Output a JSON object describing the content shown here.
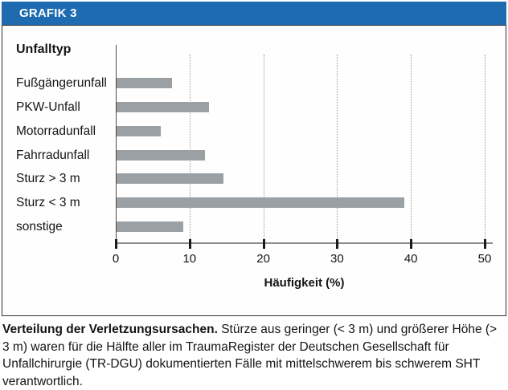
{
  "header": {
    "title": "GRAFIK 3"
  },
  "colors": {
    "header_bg": "#1e6bb1",
    "header_text": "#ffffff",
    "bar": "#9aa0a4",
    "axis_line": "#8c8c8c",
    "y_axis_line": "#4a4a4a",
    "tick": "#1a1a1a",
    "grid": "#9b9b9b",
    "box_border": "#303030",
    "text": "#141414"
  },
  "chart_data": {
    "type": "bar",
    "orientation": "horizontal",
    "ylabel": "Unfalltyp",
    "xlabel": "Häufigkeit (%)",
    "categories": [
      "Fußgängerunfall",
      "PKW-Unfall",
      "Motorradunfall",
      "Fahrradunfall",
      "Sturz > 3 m",
      "Sturz < 3 m",
      "sonstige"
    ],
    "values": [
      7.5,
      12.5,
      6,
      12,
      14.5,
      39,
      9
    ],
    "xlim": [
      0,
      50
    ],
    "xticks": [
      0,
      10,
      20,
      30,
      40,
      50
    ],
    "grid": "vertical-dotted",
    "unit": "%"
  },
  "caption": {
    "lead_bold": "Verteilung der Verletzungsursachen.",
    "body": " Stürze aus geringer (< 3 m) und größerer Höhe (> 3 m) waren für die Hälfte aller im TraumaRegister der Deutschen Gesellschaft für Unfallchirurgie (TR-DGU) dokumentierten Fälle mit mittelschwerem bis schwerem SHT verantwortlich."
  }
}
